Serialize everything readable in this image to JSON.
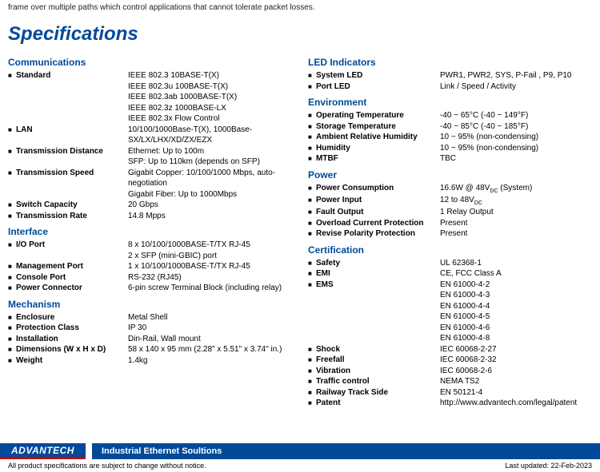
{
  "topline": "frame over multiple paths which control applications that cannot tolerate packet losses.",
  "title": "Specifications",
  "left": [
    {
      "head": "Communications",
      "rows": [
        {
          "label": "Standard",
          "values": [
            "IEEE 802.3 10BASE-T(X)",
            "IEEE 802.3u 100BASE-T(X)",
            "IEEE 802.3ab 1000BASE-T(X)",
            "IEEE 802.3z 1000BASE-LX",
            "IEEE 802.3x Flow Control"
          ]
        },
        {
          "label": "LAN",
          "values": [
            "10/100/1000Base-T(X), 1000Base-SX/LX/LHX/XD/ZX/EZX"
          ]
        },
        {
          "label": "Transmission Distance",
          "values": [
            "Ethernet: Up to 100m",
            "SFP: Up to 110km (depends on SFP)"
          ]
        },
        {
          "label": "Transmission Speed",
          "values": [
            "Gigabit Copper: 10/100/1000 Mbps, auto-negotiation",
            "Gigabit Fiber: Up to 1000Mbps"
          ]
        },
        {
          "label": "Switch Capacity",
          "values": [
            "20 Gbps"
          ]
        },
        {
          "label": "Transmission Rate",
          "values": [
            "14.8 Mpps"
          ]
        }
      ]
    },
    {
      "head": "Interface",
      "rows": [
        {
          "label": "I/O Port",
          "values": [
            "8 x 10/100/1000BASE-T/TX RJ-45",
            "2 x SFP (mini-GBIC) port"
          ]
        },
        {
          "label": "Management Port",
          "values": [
            "1 x 10/100/1000BASE-T/TX RJ-45"
          ]
        },
        {
          "label": "Console Port",
          "values": [
            "RS-232 (RJ45)"
          ]
        },
        {
          "label": "Power Connector",
          "values": [
            "6-pin screw Terminal Block (including relay)"
          ]
        }
      ]
    },
    {
      "head": "Mechanism",
      "rows": [
        {
          "label": "Enclosure",
          "values": [
            "Metal Shell"
          ]
        },
        {
          "label": "Protection Class",
          "values": [
            "IP 30"
          ]
        },
        {
          "label": "Installation",
          "values": [
            "Din-Rail, Wall mount"
          ]
        },
        {
          "label": "Dimensions (W x H x D)",
          "values": [
            "58 x 140 x 95 mm (2.28\" x 5.51\" x 3.74\" in.)"
          ]
        },
        {
          "label": "Weight",
          "values": [
            "1.4kg"
          ]
        }
      ]
    }
  ],
  "right": [
    {
      "head": "LED Indicators",
      "rows": [
        {
          "label": "System LED",
          "values": [
            "PWR1, PWR2, SYS, P-Fail , P9, P10"
          ]
        },
        {
          "label": "Port LED",
          "values": [
            "Link / Speed / Activity"
          ]
        }
      ]
    },
    {
      "head": "Environment",
      "rows": [
        {
          "label": "Operating Temperature",
          "values": [
            "-40 ~ 65°C (-40 ~ 149°F)"
          ]
        },
        {
          "label": "Storage Temperature",
          "values": [
            "-40 ~ 85°C (-40 ~ 185°F)"
          ]
        },
        {
          "label": "Ambient Relative Humidity",
          "values": [
            "10 ~ 95% (non-condensing)"
          ]
        },
        {
          "label": "Humidity",
          "values": [
            "10 ~ 95% (non-condensing)"
          ]
        },
        {
          "label": "MTBF",
          "values": [
            "TBC"
          ]
        }
      ]
    },
    {
      "head": "Power",
      "rows": [
        {
          "label": "Power Consumption",
          "values": [
            "16.6W @ 48V_DC (System)"
          ]
        },
        {
          "label": "Power Input",
          "values": [
            "12 to 48V_DC"
          ]
        },
        {
          "label": "Fault Output",
          "values": [
            "1 Relay Output"
          ]
        },
        {
          "label": "Overload Current Protection",
          "values": [
            "Present"
          ]
        },
        {
          "label": "Revise Polarity Protection",
          "values": [
            "Present"
          ]
        }
      ]
    },
    {
      "head": "Certification",
      "rows": [
        {
          "label": "Safety",
          "values": [
            "UL 62368-1"
          ]
        },
        {
          "label": "EMI",
          "values": [
            "CE, FCC Class A"
          ]
        },
        {
          "label": "EMS",
          "values": [
            "EN 61000-4-2",
            "EN 61000-4-3",
            "EN 61000-4-4",
            "EN 61000-4-5",
            "EN 61000-4-6",
            "EN 61000-4-8"
          ]
        },
        {
          "label": "Shock",
          "values": [
            "IEC 60068-2-27"
          ]
        },
        {
          "label": "Freefall",
          "values": [
            "IEC 60068-2-32"
          ]
        },
        {
          "label": "Vibration",
          "values": [
            "IEC 60068-2-6"
          ]
        },
        {
          "label": "Traffic control",
          "values": [
            "NEMA TS2"
          ]
        },
        {
          "label": "Railway Track Side",
          "values": [
            "EN 50121-4"
          ]
        },
        {
          "label": "Patent",
          "values": [
            "http://www.advantech.com/legal/patent"
          ]
        }
      ]
    }
  ],
  "footer": {
    "brand": "ADVANTECH",
    "title": "Industrial Ethernet Soultions",
    "disclaimer": "All product specifications are subject to change without notice.",
    "updated": "Last updated: 22-Feb-2023"
  }
}
